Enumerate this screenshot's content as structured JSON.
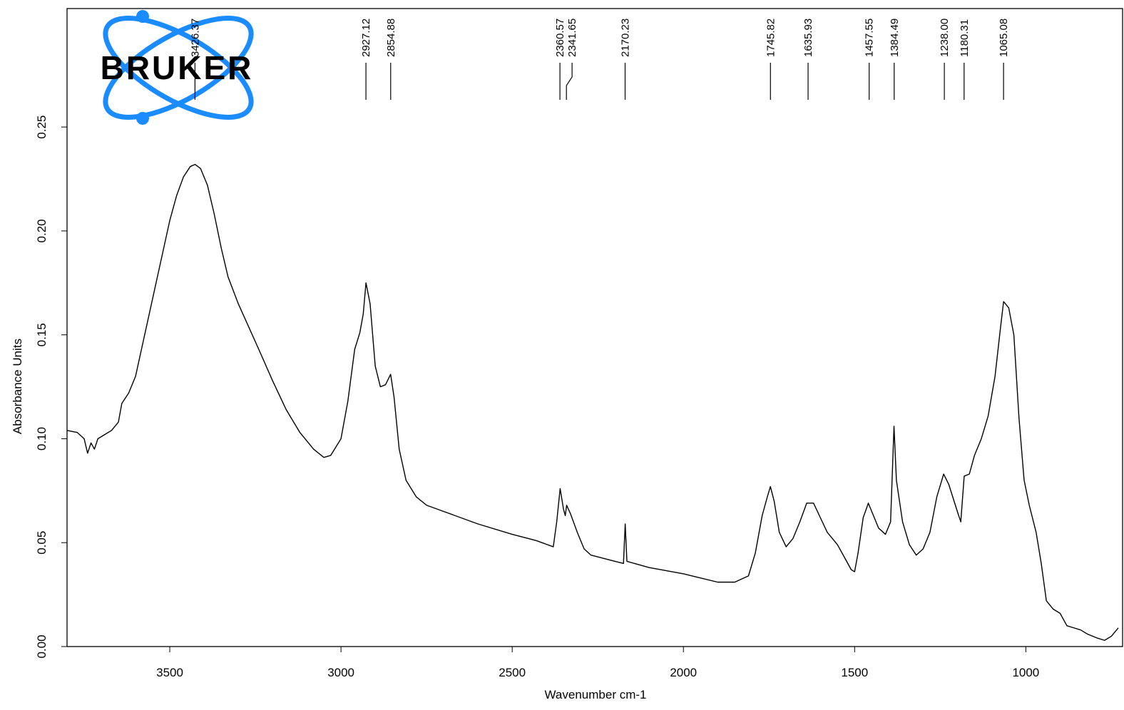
{
  "logo": "BRUKER",
  "chart_data": {
    "type": "line",
    "xlabel": "Wavenumber cm-1",
    "ylabel": "Absorbance Units",
    "xlim": [
      3800,
      730
    ],
    "ylim": [
      0,
      0.307
    ],
    "xticks": [
      3500,
      3000,
      2500,
      2000,
      1500,
      1000
    ],
    "yticks": [
      {
        "value": 0,
        "label": "0.00"
      },
      {
        "value": 0.05,
        "label": "0.05"
      },
      {
        "value": 0.1,
        "label": "0.10"
      },
      {
        "value": 0.15,
        "label": "0.15"
      },
      {
        "value": 0.2,
        "label": "0.20"
      },
      {
        "value": 0.25,
        "label": "0.25"
      }
    ],
    "peaks": [
      3426.37,
      2927.12,
      2854.88,
      2360.57,
      2341.65,
      2170.23,
      1745.82,
      1635.93,
      1457.55,
      1384.49,
      {
        "value": 1238,
        "label": "1238.00"
      },
      1180.31,
      1065.08
    ],
    "series": [
      {
        "color": "#000000",
        "x": [
          3800,
          3770,
          3750,
          3740,
          3730,
          3720,
          3710,
          3690,
          3670,
          3650,
          3640,
          3620,
          3600,
          3580,
          3560,
          3540,
          3520,
          3500,
          3480,
          3460,
          3440,
          3426,
          3410,
          3390,
          3370,
          3350,
          3330,
          3300,
          3270,
          3240,
          3200,
          3160,
          3120,
          3080,
          3050,
          3030,
          3000,
          2980,
          2960,
          2945,
          2935,
          2927,
          2915,
          2900,
          2885,
          2870,
          2855,
          2845,
          2830,
          2810,
          2780,
          2750,
          2700,
          2600,
          2500,
          2430,
          2380,
          2370,
          2360,
          2350,
          2345,
          2341,
          2330,
          2310,
          2290,
          2270,
          2200,
          2175,
          2170,
          2165,
          2100,
          2000,
          1950,
          1900,
          1850,
          1810,
          1790,
          1770,
          1755,
          1746,
          1735,
          1720,
          1700,
          1680,
          1660,
          1640,
          1620,
          1600,
          1580,
          1550,
          1530,
          1510,
          1500,
          1490,
          1475,
          1460,
          1445,
          1430,
          1410,
          1395,
          1385,
          1378,
          1360,
          1340,
          1320,
          1300,
          1280,
          1260,
          1240,
          1225,
          1200,
          1190,
          1180,
          1165,
          1150,
          1130,
          1110,
          1090,
          1075,
          1065,
          1050,
          1035,
          1020,
          1005,
          990,
          970,
          955,
          940,
          920,
          900,
          880,
          860,
          840,
          820,
          790,
          770,
          750,
          730
        ],
        "values": [
          0.104,
          0.103,
          0.1,
          0.093,
          0.098,
          0.095,
          0.1,
          0.102,
          0.104,
          0.108,
          0.117,
          0.122,
          0.13,
          0.145,
          0.16,
          0.175,
          0.19,
          0.205,
          0.217,
          0.226,
          0.231,
          0.232,
          0.23,
          0.222,
          0.208,
          0.192,
          0.178,
          0.165,
          0.154,
          0.143,
          0.128,
          0.114,
          0.103,
          0.095,
          0.091,
          0.092,
          0.1,
          0.118,
          0.143,
          0.151,
          0.16,
          0.175,
          0.165,
          0.135,
          0.125,
          0.126,
          0.131,
          0.12,
          0.095,
          0.08,
          0.072,
          0.068,
          0.065,
          0.059,
          0.054,
          0.051,
          0.048,
          0.06,
          0.076,
          0.066,
          0.063,
          0.068,
          0.064,
          0.055,
          0.047,
          0.044,
          0.041,
          0.04,
          0.059,
          0.041,
          0.038,
          0.035,
          0.033,
          0.031,
          0.031,
          0.034,
          0.045,
          0.063,
          0.072,
          0.077,
          0.07,
          0.055,
          0.048,
          0.052,
          0.06,
          0.069,
          0.069,
          0.062,
          0.055,
          0.049,
          0.043,
          0.037,
          0.036,
          0.045,
          0.062,
          0.069,
          0.063,
          0.057,
          0.054,
          0.06,
          0.106,
          0.08,
          0.06,
          0.049,
          0.044,
          0.047,
          0.055,
          0.072,
          0.083,
          0.078,
          0.065,
          0.06,
          0.082,
          0.083,
          0.092,
          0.1,
          0.111,
          0.13,
          0.152,
          0.166,
          0.163,
          0.15,
          0.11,
          0.08,
          0.068,
          0.055,
          0.04,
          0.022,
          0.018,
          0.016,
          0.01,
          0.009,
          0.008,
          0.006,
          0.004,
          0.003,
          0.005,
          0.009
        ]
      }
    ]
  }
}
